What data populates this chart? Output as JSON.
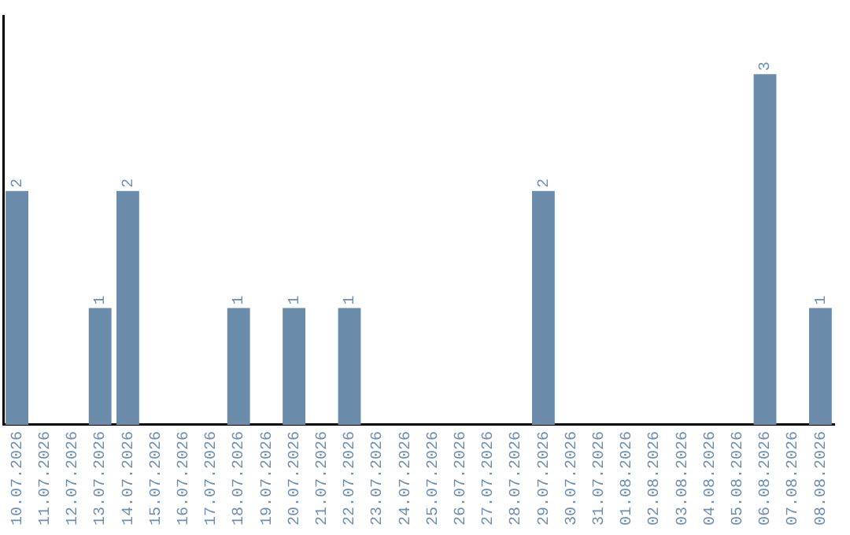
{
  "chart_data": {
    "type": "bar",
    "categories": [
      "10.07.2026",
      "11.07.2026",
      "12.07.2026",
      "13.07.2026",
      "14.07.2026",
      "15.07.2026",
      "16.07.2026",
      "17.07.2026",
      "18.07.2026",
      "19.07.2026",
      "20.07.2026",
      "21.07.2026",
      "22.07.2026",
      "23.07.2026",
      "24.07.2026",
      "25.07.2026",
      "26.07.2026",
      "27.07.2026",
      "28.07.2026",
      "29.07.2026",
      "30.07.2026",
      "31.07.2026",
      "01.08.2026",
      "02.08.2026",
      "03.08.2026",
      "04.08.2026",
      "05.08.2026",
      "06.08.2026",
      "07.08.2026",
      "08.08.2026"
    ],
    "values": [
      2,
      0,
      0,
      1,
      2,
      0,
      0,
      0,
      1,
      0,
      1,
      0,
      1,
      0,
      0,
      0,
      0,
      0,
      0,
      2,
      0,
      0,
      0,
      0,
      0,
      0,
      0,
      3,
      0,
      1
    ],
    "value_labels": [
      "2",
      null,
      null,
      "1",
      "2",
      null,
      null,
      null,
      "1",
      null,
      "1",
      null,
      "1",
      null,
      null,
      null,
      null,
      null,
      null,
      "2",
      null,
      null,
      null,
      null,
      null,
      null,
      null,
      "3",
      null,
      "1"
    ],
    "color": "#6a8caa",
    "tick_labels": "x",
    "grid": false,
    "legend": false
  }
}
